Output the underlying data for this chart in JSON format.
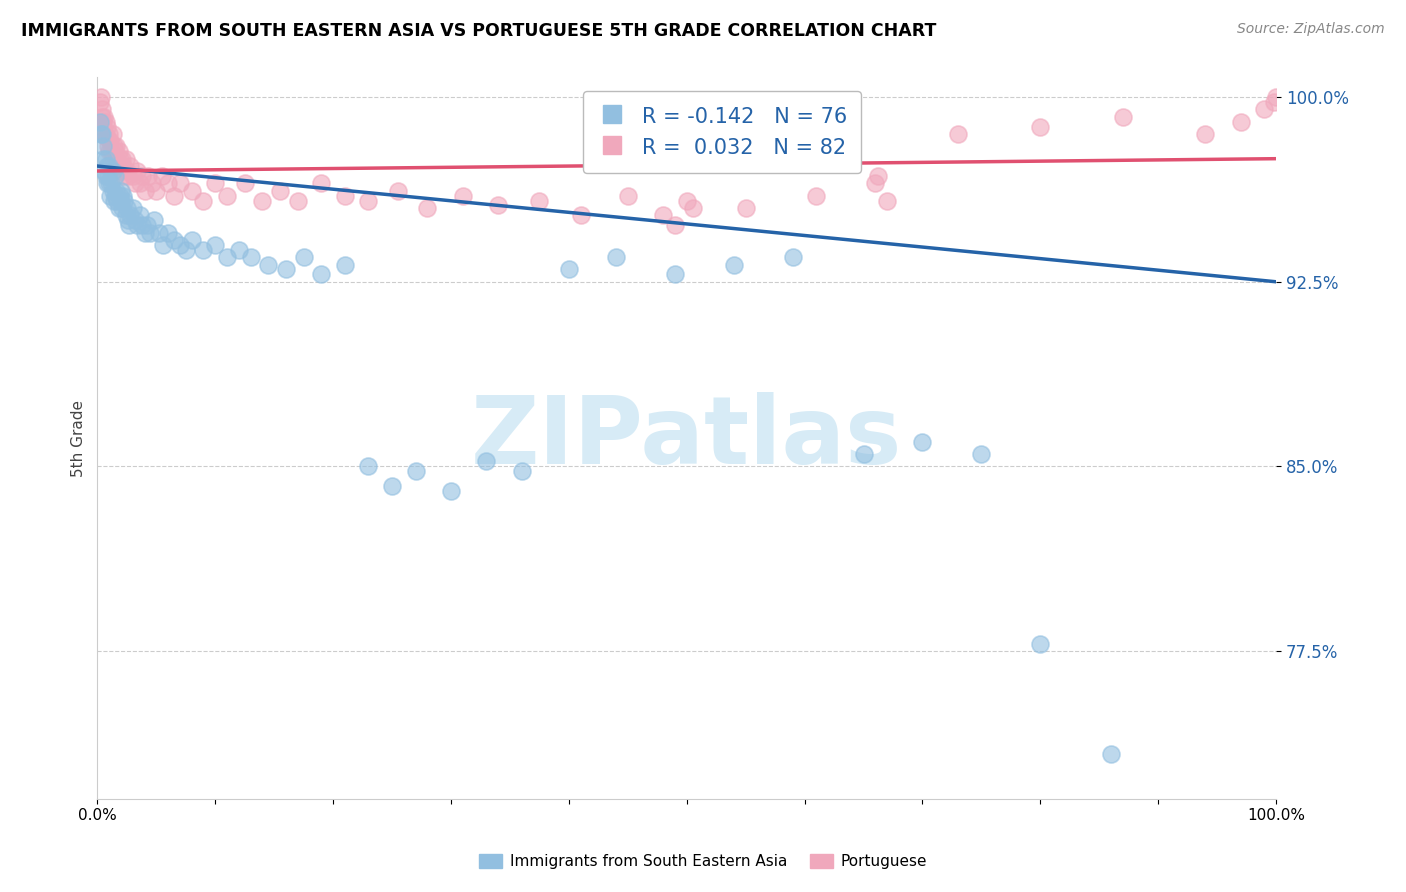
{
  "title": "IMMIGRANTS FROM SOUTH EASTERN ASIA VS PORTUGUESE 5TH GRADE CORRELATION CHART",
  "source": "Source: ZipAtlas.com",
  "ylabel": "5th Grade",
  "blue_R": "-0.142",
  "blue_N": "76",
  "pink_R": "0.032",
  "pink_N": "82",
  "blue_color": "#92bfe0",
  "pink_color": "#f0a8bc",
  "blue_edge_color": "#92bfe0",
  "pink_edge_color": "#f0a8bc",
  "blue_line_color": "#2563a8",
  "pink_line_color": "#e05070",
  "watermark_text": "ZIPatlas",
  "watermark_color": "#d0e8f5",
  "legend_label_blue": "Immigrants from South Eastern Asia",
  "legend_label_pink": "Portuguese",
  "xlim": [
    0.0,
    1.0
  ],
  "ylim": [
    0.715,
    1.008
  ],
  "y_ticks": [
    0.775,
    0.85,
    0.925,
    1.0
  ],
  "y_tick_labels": [
    "77.5%",
    "85.0%",
    "92.5%",
    "100.0%"
  ],
  "x_ticks": [
    0.0,
    0.1,
    0.2,
    0.3,
    0.4,
    0.5,
    0.6,
    0.7,
    0.8,
    0.9,
    1.0
  ],
  "x_tick_labels": [
    "0.0%",
    "",
    "",
    "",
    "",
    "",
    "",
    "",
    "",
    "",
    "100.0%"
  ],
  "blue_trend_x": [
    0.0,
    1.0
  ],
  "blue_trend_y": [
    0.972,
    0.925
  ],
  "pink_trend_x": [
    0.0,
    1.0
  ],
  "pink_trend_y": [
    0.97,
    0.975
  ],
  "blue_scatter_x": [
    0.002,
    0.003,
    0.004,
    0.005,
    0.005,
    0.006,
    0.007,
    0.007,
    0.008,
    0.008,
    0.009,
    0.01,
    0.01,
    0.011,
    0.012,
    0.013,
    0.013,
    0.014,
    0.015,
    0.015,
    0.016,
    0.017,
    0.018,
    0.019,
    0.02,
    0.02,
    0.021,
    0.022,
    0.023,
    0.024,
    0.025,
    0.026,
    0.027,
    0.028,
    0.03,
    0.032,
    0.034,
    0.036,
    0.038,
    0.04,
    0.042,
    0.045,
    0.048,
    0.052,
    0.056,
    0.06,
    0.065,
    0.07,
    0.075,
    0.08,
    0.09,
    0.1,
    0.11,
    0.12,
    0.13,
    0.145,
    0.16,
    0.175,
    0.19,
    0.21,
    0.23,
    0.25,
    0.27,
    0.3,
    0.33,
    0.36,
    0.4,
    0.44,
    0.49,
    0.54,
    0.59,
    0.65,
    0.7,
    0.75,
    0.8,
    0.86
  ],
  "blue_scatter_y": [
    0.99,
    0.985,
    0.985,
    0.98,
    0.975,
    0.97,
    0.975,
    0.968,
    0.972,
    0.965,
    0.968,
    0.972,
    0.965,
    0.96,
    0.965,
    0.97,
    0.962,
    0.958,
    0.968,
    0.96,
    0.962,
    0.958,
    0.955,
    0.96,
    0.958,
    0.962,
    0.955,
    0.96,
    0.958,
    0.952,
    0.955,
    0.95,
    0.948,
    0.952,
    0.955,
    0.95,
    0.948,
    0.952,
    0.948,
    0.945,
    0.948,
    0.945,
    0.95,
    0.945,
    0.94,
    0.945,
    0.942,
    0.94,
    0.938,
    0.942,
    0.938,
    0.94,
    0.935,
    0.938,
    0.935,
    0.932,
    0.93,
    0.935,
    0.928,
    0.932,
    0.85,
    0.842,
    0.848,
    0.84,
    0.852,
    0.848,
    0.93,
    0.935,
    0.928,
    0.932,
    0.935,
    0.855,
    0.86,
    0.855,
    0.778,
    0.733
  ],
  "pink_scatter_x": [
    0.002,
    0.003,
    0.004,
    0.004,
    0.005,
    0.005,
    0.006,
    0.006,
    0.007,
    0.007,
    0.008,
    0.008,
    0.009,
    0.01,
    0.01,
    0.011,
    0.012,
    0.013,
    0.013,
    0.014,
    0.015,
    0.016,
    0.016,
    0.017,
    0.018,
    0.019,
    0.02,
    0.021,
    0.022,
    0.023,
    0.024,
    0.025,
    0.026,
    0.028,
    0.03,
    0.032,
    0.034,
    0.036,
    0.038,
    0.04,
    0.043,
    0.046,
    0.05,
    0.055,
    0.06,
    0.065,
    0.07,
    0.08,
    0.09,
    0.1,
    0.11,
    0.125,
    0.14,
    0.155,
    0.17,
    0.19,
    0.21,
    0.23,
    0.255,
    0.28,
    0.31,
    0.34,
    0.375,
    0.41,
    0.45,
    0.5,
    0.55,
    0.61,
    0.67,
    0.73,
    0.8,
    0.87,
    0.94,
    0.97,
    0.99,
    0.998,
    1.0,
    0.66,
    0.662,
    0.48,
    0.49,
    0.505
  ],
  "pink_scatter_y": [
    0.998,
    1.0,
    0.995,
    0.992,
    0.99,
    0.988,
    0.992,
    0.986,
    0.99,
    0.984,
    0.988,
    0.984,
    0.98,
    0.985,
    0.978,
    0.982,
    0.978,
    0.985,
    0.975,
    0.98,
    0.978,
    0.975,
    0.98,
    0.972,
    0.978,
    0.975,
    0.97,
    0.975,
    0.972,
    0.968,
    0.975,
    0.97,
    0.968,
    0.972,
    0.968,
    0.965,
    0.97,
    0.965,
    0.968,
    0.962,
    0.968,
    0.965,
    0.962,
    0.968,
    0.965,
    0.96,
    0.965,
    0.962,
    0.958,
    0.965,
    0.96,
    0.965,
    0.958,
    0.962,
    0.958,
    0.965,
    0.96,
    0.958,
    0.962,
    0.955,
    0.96,
    0.956,
    0.958,
    0.952,
    0.96,
    0.958,
    0.955,
    0.96,
    0.958,
    0.985,
    0.988,
    0.992,
    0.985,
    0.99,
    0.995,
    0.998,
    1.0,
    0.965,
    0.968,
    0.952,
    0.948,
    0.955
  ]
}
